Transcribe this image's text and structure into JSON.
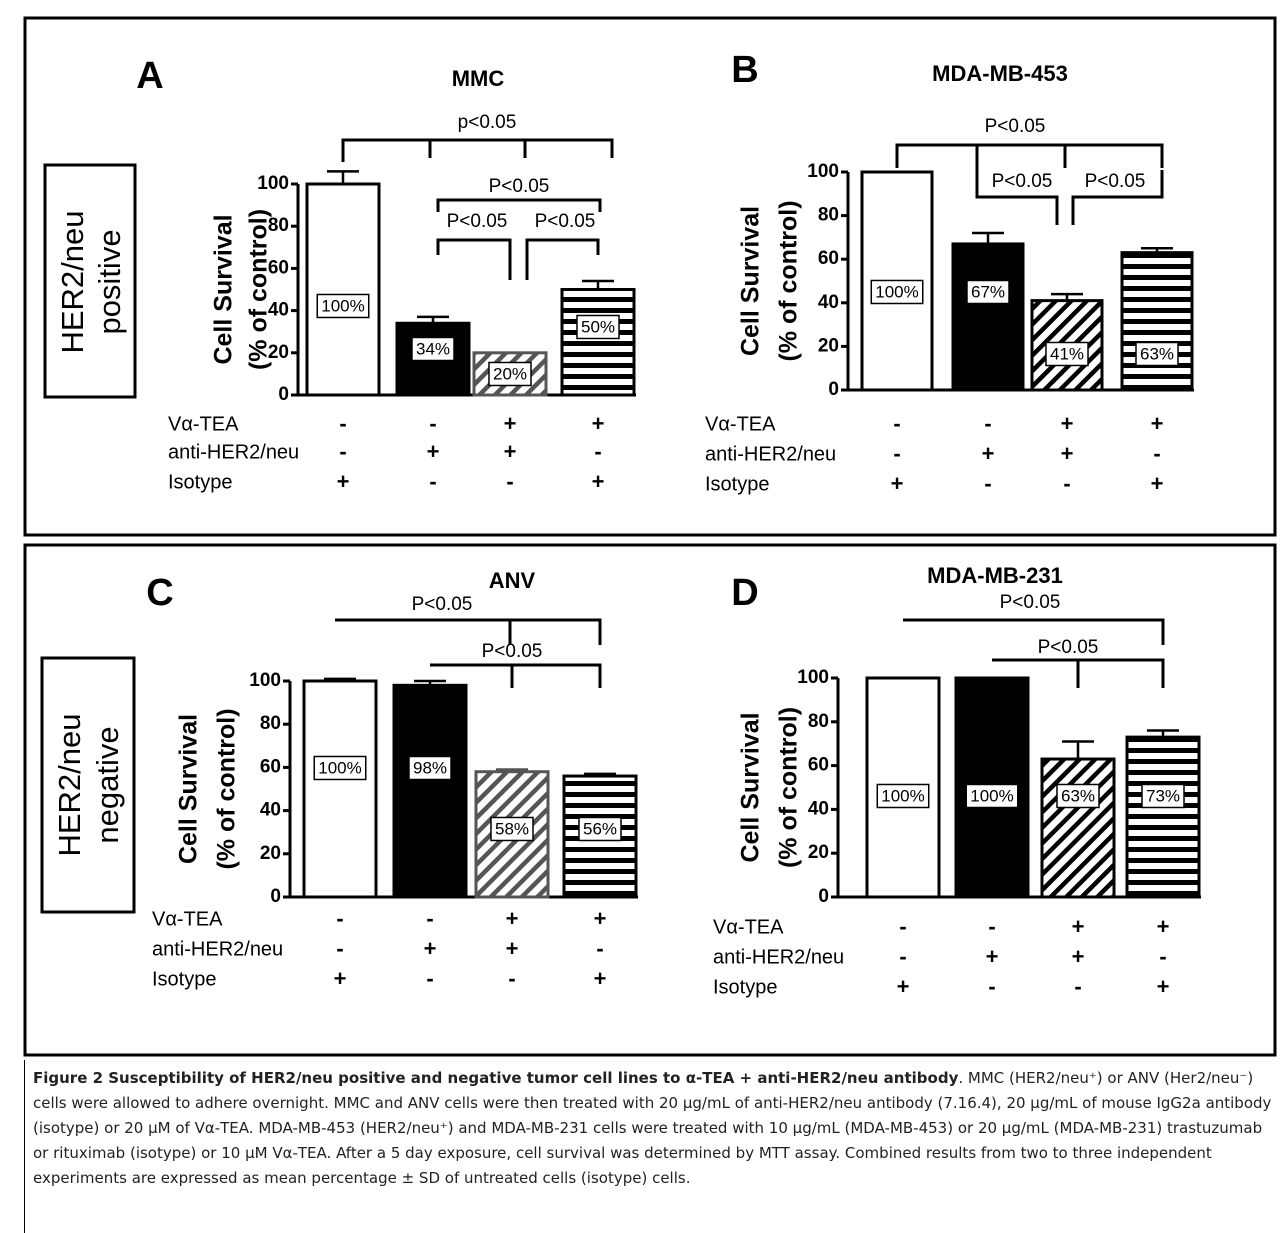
{
  "groups": [
    {
      "label": [
        "HER2/neu",
        "positive"
      ]
    },
    {
      "label": [
        "HER2/neu",
        "negative"
      ]
    }
  ],
  "chart_data": [
    {
      "type": "bar",
      "panel": "A",
      "title": "MMC",
      "ylabel": [
        "Cell Survival",
        "(% of control)"
      ],
      "categories": [
        null,
        null,
        null,
        null
      ],
      "values": [
        100,
        34,
        20,
        50
      ],
      "errors": [
        6,
        3,
        0,
        4
      ],
      "value_labels": [
        "100%",
        "34%",
        "20%",
        "50%"
      ],
      "colors": [
        "#ffffff",
        "#000000",
        "#555555",
        "#000000"
      ],
      "patterns": [
        "solid",
        "solid",
        "diagonal",
        "horizontal"
      ],
      "ylim": [
        0,
        100
      ],
      "yticks": [
        0,
        20,
        40,
        60,
        80,
        100
      ],
      "significance": [
        "p<0.05",
        "P<0.05",
        "P<0.05",
        "P<0.05"
      ],
      "treatments": [
        {
          "name": "Vα-TEA",
          "signs": [
            "-",
            "-",
            "+",
            "+"
          ]
        },
        {
          "name": "anti-HER2/neu",
          "signs": [
            "-",
            "+",
            "+",
            "-"
          ]
        },
        {
          "name": "Isotype",
          "signs": [
            "+",
            "-",
            "-",
            "+"
          ]
        }
      ]
    },
    {
      "type": "bar",
      "panel": "B",
      "title": "MDA-MB-453",
      "ylabel": [
        "Cell Survival",
        "(% of control)"
      ],
      "categories": [
        null,
        null,
        null,
        null
      ],
      "values": [
        100,
        67,
        41,
        63
      ],
      "errors": [
        0,
        5,
        3,
        2
      ],
      "value_labels": [
        "100%",
        "67%",
        "41%",
        "63%"
      ],
      "colors": [
        "#ffffff",
        "#000000",
        "#000000",
        "#000000"
      ],
      "patterns": [
        "solid",
        "solid",
        "diagonal",
        "horizontal"
      ],
      "ylim": [
        0,
        100
      ],
      "yticks": [
        0,
        20,
        40,
        60,
        80,
        100
      ],
      "significance": [
        "P<0.05",
        "P<0.05",
        "P<0.05"
      ],
      "treatments": [
        {
          "name": "Vα-TEA",
          "signs": [
            "-",
            "-",
            "+",
            "+"
          ]
        },
        {
          "name": "anti-HER2/neu",
          "signs": [
            "-",
            "+",
            "+",
            "-"
          ]
        },
        {
          "name": "Isotype",
          "signs": [
            "+",
            "-",
            "-",
            "+"
          ]
        }
      ]
    },
    {
      "type": "bar",
      "panel": "C",
      "title": "ANV",
      "ylabel": [
        "Cell Survival",
        "(% of control)"
      ],
      "categories": [
        null,
        null,
        null,
        null
      ],
      "values": [
        100,
        98,
        58,
        56
      ],
      "errors": [
        1,
        2,
        1,
        1
      ],
      "value_labels": [
        "100%",
        "98%",
        "58%",
        "56%"
      ],
      "colors": [
        "#ffffff",
        "#000000",
        "#555555",
        "#000000"
      ],
      "patterns": [
        "solid",
        "solid",
        "diagonal",
        "horizontal"
      ],
      "ylim": [
        0,
        100
      ],
      "yticks": [
        0,
        20,
        40,
        60,
        80,
        100
      ],
      "significance": [
        "P<0.05",
        "P<0.05"
      ],
      "treatments": [
        {
          "name": "Vα-TEA",
          "signs": [
            "-",
            "-",
            "+",
            "+"
          ]
        },
        {
          "name": "anti-HER2/neu",
          "signs": [
            "-",
            "+",
            "+",
            "-"
          ]
        },
        {
          "name": "Isotype",
          "signs": [
            "+",
            "-",
            "-",
            "+"
          ]
        }
      ]
    },
    {
      "type": "bar",
      "panel": "D",
      "title": "MDA-MB-231",
      "ylabel": [
        "Cell Survival",
        "(% of control)"
      ],
      "categories": [
        null,
        null,
        null,
        null
      ],
      "values": [
        100,
        100,
        63,
        73
      ],
      "errors": [
        0,
        0,
        8,
        3
      ],
      "value_labels": [
        "100%",
        "100%",
        "63%",
        "73%"
      ],
      "colors": [
        "#ffffff",
        "#000000",
        "#000000",
        "#000000"
      ],
      "patterns": [
        "solid",
        "solid",
        "diagonal",
        "horizontal"
      ],
      "ylim": [
        0,
        100
      ],
      "yticks": [
        0,
        20,
        40,
        60,
        80,
        100
      ],
      "significance": [
        "P<0.05",
        "P<0.05"
      ],
      "treatments": [
        {
          "name": "Vα-TEA",
          "signs": [
            "-",
            "-",
            "+",
            "+"
          ]
        },
        {
          "name": "anti-HER2/neu",
          "signs": [
            "-",
            "+",
            "+",
            "-"
          ]
        },
        {
          "name": "Isotype",
          "signs": [
            "+",
            "-",
            "-",
            "+"
          ]
        }
      ]
    }
  ],
  "caption": {
    "title": "Figure 2 Susceptibility of HER2/neu positive and negative tumor cell lines to α-TEA + anti-HER2/neu antibody",
    "text": ". MMC (HER2/neu⁺) or ANV (Her2/neu⁻) cells were allowed to adhere overnight. MMC and ANV cells were then treated with 20 µg/mL of anti-HER2/neu antibody (7.16.4), 20 µg/mL of mouse IgG2a antibody (isotype) or 20 µM of Vα-TEA. MDA-MB-453 (HER2/neu⁺) and MDA-MB-231 cells were treated with 10 µg/mL (MDA-MB-453) or 20 µg/mL (MDA-MB-231) trastuzumab or rituximab (isotype) or 10 µM Vα-TEA. After a 5 day exposure, cell survival was determined by MTT assay. Combined results from two to three independent experiments are expressed as mean percentage ± SD of untreated cells (isotype) cells."
  }
}
